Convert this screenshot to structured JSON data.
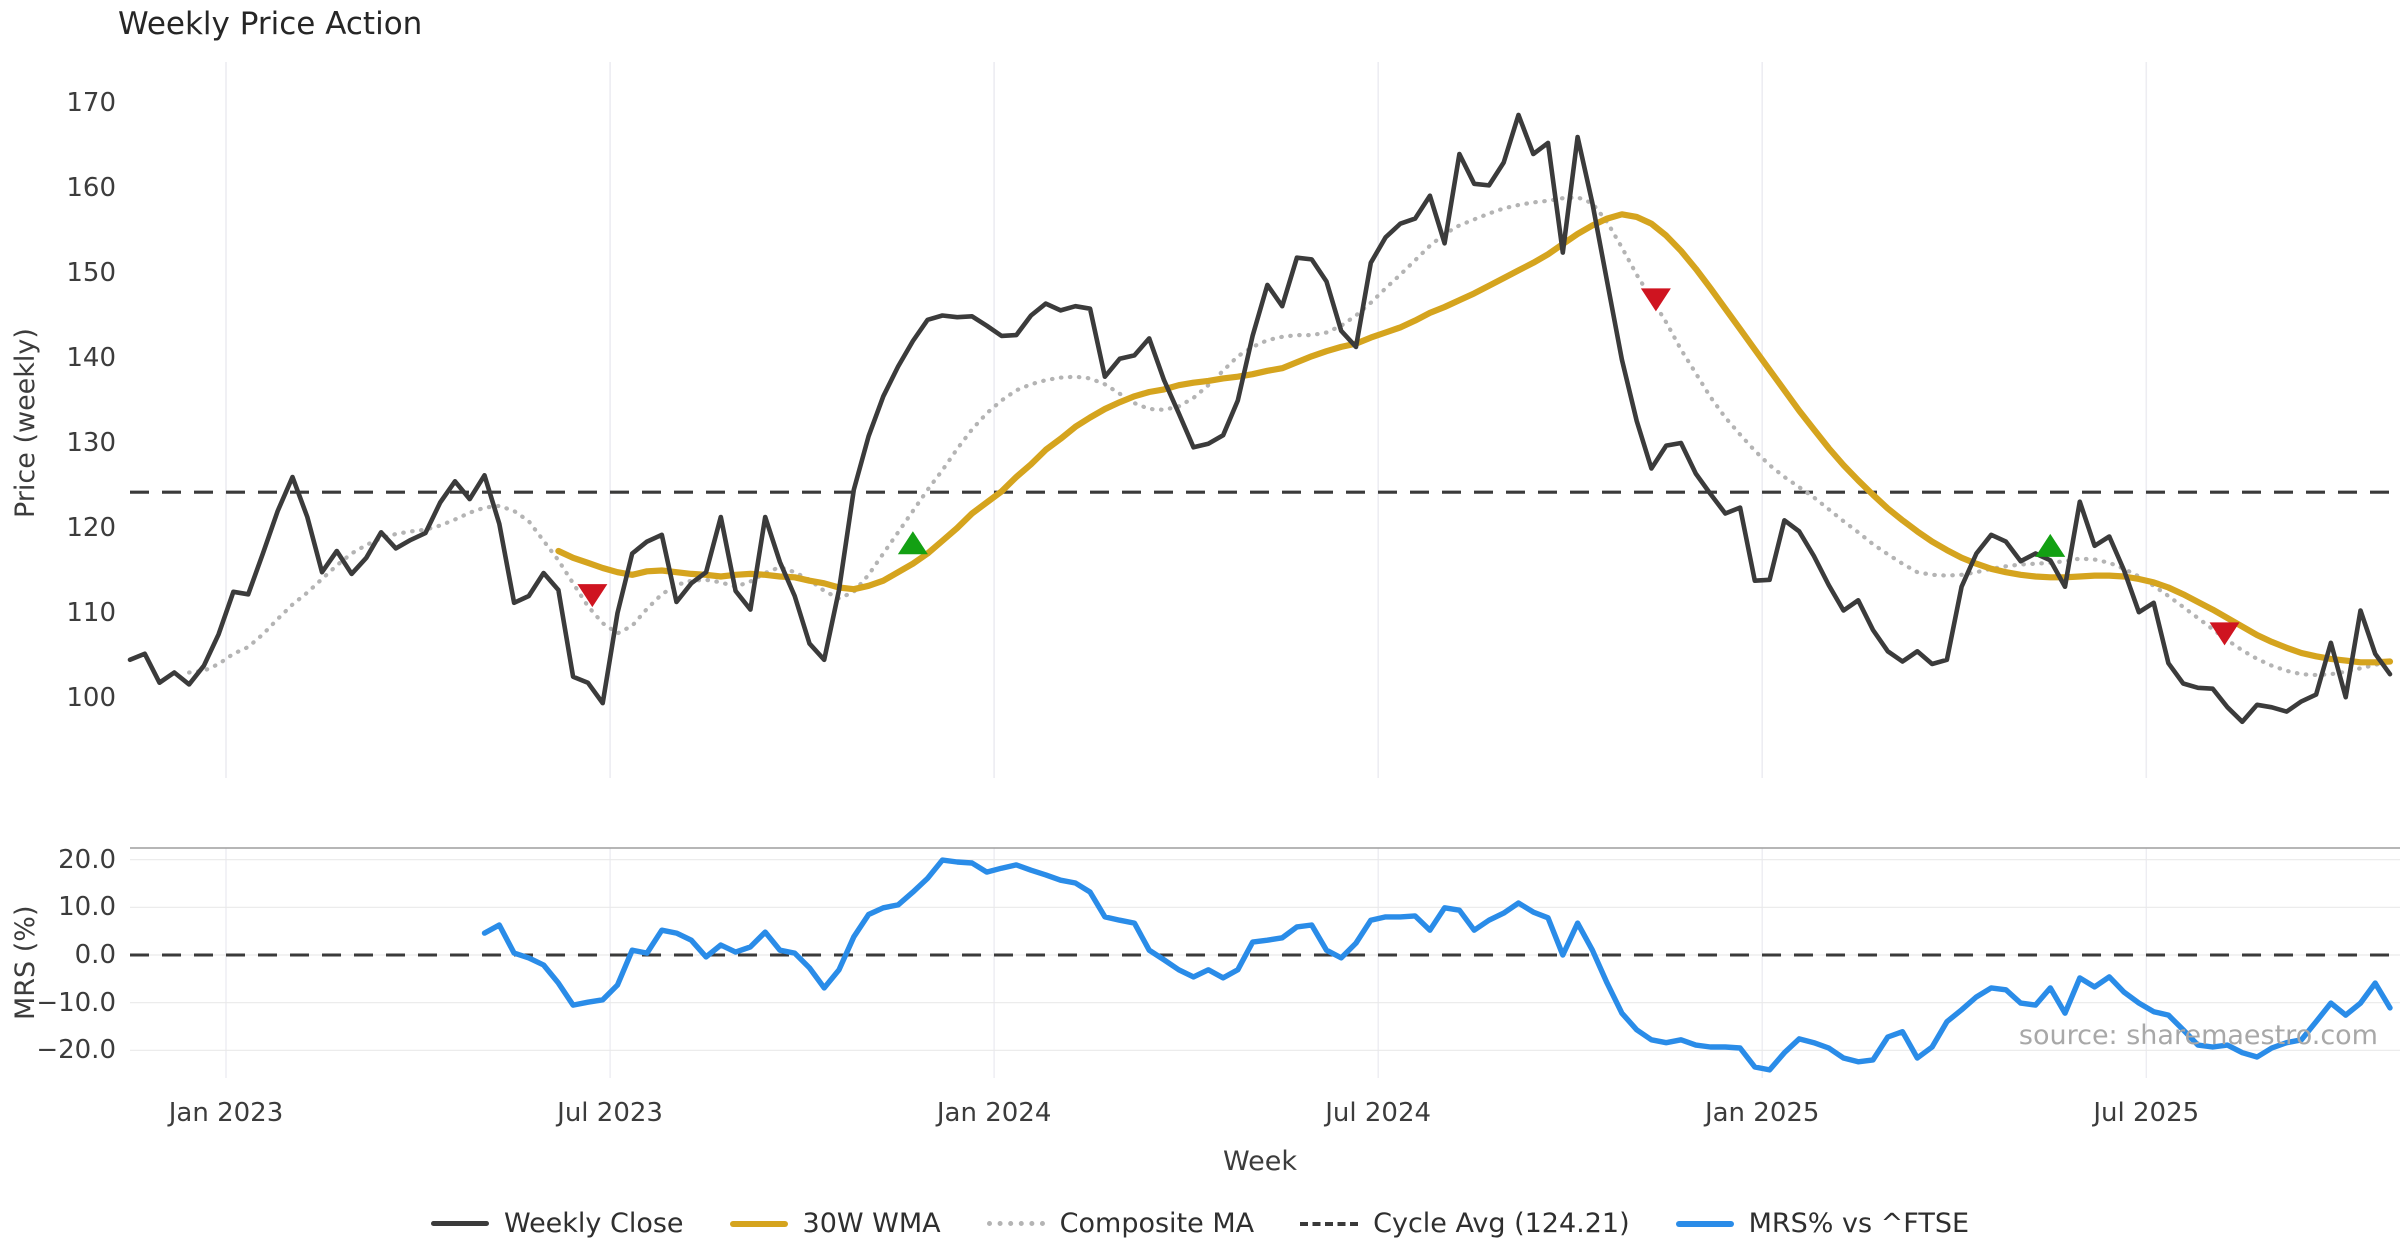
{
  "title": "Weekly Price Action",
  "source": "source: sharemaestro.com",
  "price_axis": {
    "label": "Price (weekly)",
    "ticks": [
      170,
      160,
      150,
      140,
      130,
      120,
      110,
      100
    ]
  },
  "mrs_axis": {
    "label": "MRS (%)",
    "tick_labels": [
      "20.0",
      "10.0",
      "0.0",
      "−10.0",
      "−20.0"
    ],
    "tick_values": [
      20,
      10,
      0,
      -10,
      -20
    ]
  },
  "x_axis": {
    "label": "Week",
    "ticks": [
      {
        "label": "Jan 2023",
        "week": 6.5
      },
      {
        "label": "Jul 2023",
        "week": 32.5
      },
      {
        "label": "Jan 2024",
        "week": 58.5
      },
      {
        "label": "Jul 2024",
        "week": 84.5
      },
      {
        "label": "Jan 2025",
        "week": 110.5
      },
      {
        "label": "Jul 2025",
        "week": 136.5
      }
    ]
  },
  "legend": {
    "items": [
      {
        "label": "Weekly Close",
        "style": "solid",
        "color": "#3b3b3b",
        "thickness": 5
      },
      {
        "label": "30W WMA",
        "style": "solid",
        "color": "#d5a41e",
        "thickness": 6
      },
      {
        "label": "Composite MA",
        "style": "dotted",
        "color": "#b4b4b4",
        "thickness": 5
      },
      {
        "label": "Cycle Avg (124.21)",
        "style": "dashed",
        "color": "#3a3a3a",
        "thickness": 4
      },
      {
        "label": "MRS% vs ^FTSE",
        "style": "solid",
        "color": "#2a8ce8",
        "thickness": 6
      }
    ]
  },
  "colors": {
    "close": "#3b3b3b",
    "wma": "#d5a41e",
    "composite": "#b4b4b4",
    "cycle": "#3a3a3a",
    "mrs": "#2a8ce8",
    "buy": "#13a013",
    "sell": "#cf1420",
    "grid_v": "#ededf2",
    "grid_h": "#e9e9e9",
    "panel_border": "#9e9e9e",
    "text": "#3c3c3c",
    "title": "#262626",
    "source": "#a8a8a8"
  },
  "chart_data": {
    "type": "line",
    "x": {
      "label": "Week",
      "unit": "weekly index (Nov 2022 - Nov 2025)",
      "range": [
        0,
        153
      ]
    },
    "panels": [
      {
        "name": "price",
        "ylabel": "Price (weekly)",
        "ylim": [
          91,
          175
        ],
        "yticks": [
          170,
          160,
          150,
          140,
          130,
          120,
          110,
          100
        ],
        "grid": "vertical-only",
        "reference_line": {
          "name": "Cycle Avg",
          "value": 124.21,
          "style": "dashed"
        },
        "series": [
          {
            "name": "Weekly Close",
            "start_week": 0,
            "values": [
              104.5,
              105.2,
              101.8,
              103.0,
              101.6,
              103.8,
              107.5,
              112.5,
              112.2,
              117.0,
              122.0,
              126.0,
              121.3,
              114.8,
              117.3,
              114.6,
              116.5,
              119.5,
              117.6,
              118.6,
              119.4,
              123.0,
              125.5,
              123.4,
              126.2,
              120.5,
              111.2,
              112.0,
              114.7,
              112.7,
              102.5,
              101.8,
              99.4,
              110.0,
              117.0,
              118.4,
              119.2,
              111.3,
              113.5,
              114.8,
              121.3,
              112.6,
              110.4,
              121.3,
              116.0,
              112.0,
              106.4,
              104.5,
              112.7,
              124.5,
              130.8,
              135.5,
              139.0,
              142.0,
              144.5,
              145.0,
              144.8,
              144.9,
              143.8,
              142.6,
              142.7,
              145.0,
              146.4,
              145.6,
              146.1,
              145.8,
              137.8,
              139.9,
              140.3,
              142.3,
              137.4,
              133.5,
              129.5,
              129.9,
              130.9,
              135.0,
              142.6,
              148.6,
              146.1,
              151.8,
              151.6,
              149.0,
              143.2,
              141.3,
              151.2,
              154.2,
              155.8,
              156.4,
              159.1,
              153.5,
              164.0,
              160.5,
              160.3,
              163.0,
              168.6,
              164.0,
              165.3,
              152.4,
              166.0,
              158.2,
              149.0,
              139.8,
              132.6,
              127.0,
              129.7,
              130.0,
              126.4,
              124.0,
              121.7,
              122.4,
              113.8,
              113.9,
              120.9,
              119.6,
              116.7,
              113.3,
              110.3,
              111.5,
              108.0,
              105.5,
              104.3,
              105.5,
              104.0,
              104.5,
              113.1,
              117.0,
              119.2,
              118.4,
              116.1,
              117.0,
              116.2,
              113.1,
              123.1,
              117.9,
              119.0,
              115.0,
              110.1,
              111.2,
              104.1,
              101.7,
              101.2,
              101.1,
              98.9,
              97.2,
              99.2,
              98.9,
              98.4,
              99.6,
              100.4,
              106.5,
              100.1,
              110.3,
              105.2,
              102.8
            ]
          },
          {
            "name": "30W WMA",
            "start_week": 29,
            "values": [
              117.3,
              116.5,
              115.9,
              115.3,
              114.8,
              114.5,
              114.9,
              115.0,
              114.8,
              114.6,
              114.5,
              114.3,
              114.5,
              114.6,
              114.5,
              114.3,
              114.2,
              113.8,
              113.5,
              113.0,
              112.8,
              113.2,
              113.8,
              114.8,
              115.8,
              117.0,
              118.5,
              120.0,
              121.7,
              123.0,
              124.3,
              126.0,
              127.5,
              129.2,
              130.5,
              131.9,
              133.0,
              134.0,
              134.8,
              135.5,
              136.0,
              136.3,
              136.8,
              137.1,
              137.3,
              137.6,
              137.8,
              138.1,
              138.5,
              138.8,
              139.5,
              140.2,
              140.8,
              141.3,
              141.7,
              142.4,
              143.0,
              143.6,
              144.4,
              145.3,
              146.0,
              146.8,
              147.6,
              148.5,
              149.4,
              150.3,
              151.2,
              152.2,
              153.4,
              154.6,
              155.6,
              156.4,
              156.9,
              156.6,
              155.8,
              154.4,
              152.6,
              150.5,
              148.2,
              145.8,
              143.4,
              141.0,
              138.6,
              136.2,
              133.8,
              131.6,
              129.4,
              127.4,
              125.6,
              123.9,
              122.3,
              120.9,
              119.6,
              118.4,
              117.4,
              116.5,
              115.8,
              115.2,
              114.8,
              114.5,
              114.3,
              114.2,
              114.2,
              114.3,
              114.4,
              114.4,
              114.3,
              114.0,
              113.6,
              113.0,
              112.2,
              111.3,
              110.4,
              109.4,
              108.4,
              107.4,
              106.6,
              105.9,
              105.3,
              104.9,
              104.6,
              104.4,
              104.2,
              104.2,
              104.3
            ]
          },
          {
            "name": "Composite MA",
            "start_week": 4,
            "values": [
              103.0,
              103.2,
              104.0,
              105.2,
              106.0,
              107.5,
              109.3,
              111.0,
              112.4,
              114.0,
              115.6,
              117.0,
              118.0,
              118.8,
              119.3,
              119.6,
              119.8,
              120.3,
              121.0,
              121.8,
              122.4,
              122.6,
              122.0,
              120.8,
              118.5,
              116.2,
              113.5,
              110.8,
              108.8,
              107.6,
              108.5,
              110.5,
              112.2,
              113.3,
              113.8,
              113.9,
              113.6,
              113.1,
              113.7,
              114.7,
              115.4,
              114.8,
              113.9,
              112.6,
              111.7,
              112.5,
              114.5,
              117.0,
              119.5,
              122.0,
              124.5,
              126.8,
              129.3,
              131.6,
              133.5,
              135.0,
              136.2,
              136.9,
              137.4,
              137.7,
              137.8,
              137.6,
              136.9,
              135.8,
              134.7,
              134.0,
              133.9,
              134.3,
              135.3,
              136.8,
              138.5,
              140.2,
              141.3,
              142.1,
              142.5,
              142.7,
              142.7,
              143.0,
              143.8,
              145.0,
              146.5,
              148.2,
              149.8,
              151.5,
              153.2,
              154.6,
              155.6,
              156.3,
              157.0,
              157.6,
              158.0,
              158.3,
              158.5,
              158.8,
              158.9,
              158.2,
              156.0,
              153.0,
              149.8,
              147.0,
              144.2,
              141.0,
              138.2,
              135.4,
              133.0,
              131.0,
              129.1,
              127.4,
              126.0,
              124.8,
              123.6,
              122.2,
              120.8,
              119.5,
              118.1,
              116.9,
              115.8,
              114.8,
              114.5,
              114.4,
              114.5,
              114.8,
              115.2,
              115.5,
              115.7,
              115.8,
              115.9,
              116.1,
              116.4,
              116.3,
              115.9,
              115.2,
              114.3,
              113.2,
              112.0,
              110.7,
              109.4,
              108.1,
              106.8,
              105.6,
              104.6,
              103.8,
              103.2,
              102.8,
              102.7,
              102.8,
              103.1,
              103.5,
              103.9,
              104.3
            ]
          }
        ],
        "signals": {
          "buy": [
            {
              "week": 53,
              "price": 118.2
            },
            {
              "week": 130,
              "price": 117.9
            }
          ],
          "sell": [
            {
              "week": 31.3,
              "price": 112.1
            },
            {
              "week": 103.3,
              "price": 146.9
            },
            {
              "week": 141.8,
              "price": 107.6
            }
          ]
        }
      },
      {
        "name": "mrs",
        "ylabel": "MRS (%)",
        "ylim": [
          -25.8,
          22.4
        ],
        "yticks": [
          20,
          10,
          0,
          -10,
          -20
        ],
        "grid": "horizontal-and-vertical",
        "reference_line": {
          "name": "zero",
          "value": 0,
          "style": "dashed"
        },
        "series": [
          {
            "name": "MRS% vs ^FTSE",
            "start_week": 24,
            "values": [
              4.6,
              6.3,
              0.4,
              -0.6,
              -2.1,
              -5.9,
              -10.5,
              -9.9,
              -9.4,
              -6.3,
              1.0,
              0.4,
              5.2,
              4.6,
              3.1,
              -0.4,
              2.1,
              0.6,
              1.7,
              4.8,
              1.0,
              0.4,
              -2.7,
              -6.9,
              -3.1,
              3.8,
              8.5,
              9.9,
              10.5,
              13.2,
              16.1,
              19.9,
              19.5,
              19.3,
              17.4,
              18.2,
              18.9,
              17.8,
              16.8,
              15.7,
              15.1,
              13.2,
              8.0,
              7.3,
              6.7,
              1.0,
              -1.0,
              -3.1,
              -4.6,
              -3.1,
              -4.8,
              -3.1,
              2.7,
              3.1,
              3.6,
              5.9,
              6.3,
              1.0,
              -0.6,
              2.5,
              7.3,
              8.0,
              8.0,
              8.2,
              5.2,
              9.9,
              9.4,
              5.2,
              7.3,
              8.8,
              10.9,
              9.0,
              7.8,
              0.0,
              6.7,
              1.0,
              -5.9,
              -12.2,
              -15.7,
              -17.8,
              -18.4,
              -17.8,
              -18.9,
              -19.3,
              -19.3,
              -19.5,
              -23.5,
              -24.1,
              -20.5,
              -17.6,
              -18.4,
              -19.5,
              -21.6,
              -22.4,
              -22.0,
              -17.2,
              -16.1,
              -21.6,
              -19.3,
              -14.0,
              -11.5,
              -8.8,
              -6.9,
              -7.3,
              -10.1,
              -10.5,
              -6.9,
              -12.2,
              -4.8,
              -6.7,
              -4.6,
              -7.8,
              -10.1,
              -11.9,
              -12.6,
              -15.7,
              -18.9,
              -19.3,
              -18.9,
              -20.5,
              -21.4,
              -19.5,
              -18.4,
              -17.8,
              -14.0,
              -10.1,
              -12.6,
              -10.1,
              -5.9,
              -11.1
            ]
          }
        ]
      }
    ]
  }
}
